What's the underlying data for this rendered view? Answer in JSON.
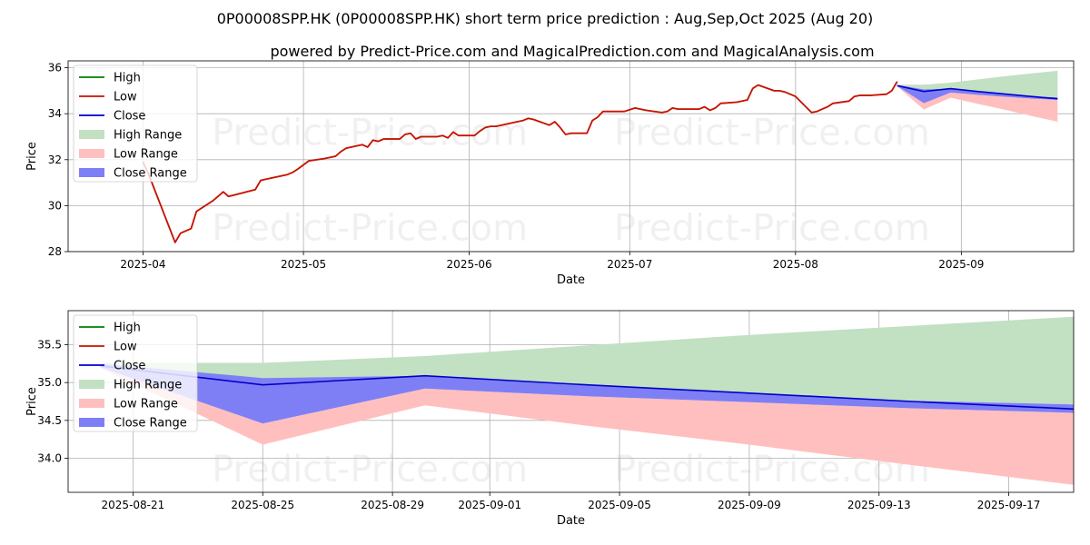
{
  "title_line1": "0P00008SPP.HK (0P00008SPP.HK) short term price prediction : Aug,Sep,Oct 2025 (Aug 20)",
  "title_line2": "powered by Predict-Price.com and MagicalPrediction.com and MagicalAnalysis.com",
  "watermark": "Predict-Price.com",
  "colors": {
    "high": "#008000",
    "low": "#cc1100",
    "close": "#0000cc",
    "high_range": "#c2e0c2",
    "low_range": "#ffbfbf",
    "close_range": "#7f7ff5"
  },
  "chart_data": [
    {
      "type": "line",
      "xlabel": "Date",
      "ylabel": "Price",
      "ylim": [
        28,
        36.3
      ],
      "xlim": [
        "2025-03-18",
        "2025-09-22"
      ],
      "yticks": [
        28,
        30,
        32,
        34,
        36
      ],
      "xticks": [
        "2025-04-01",
        "2025-05-01",
        "2025-06-01",
        "2025-07-01",
        "2025-08-01",
        "2025-09-01"
      ],
      "xtick_labels": [
        "2025-04",
        "2025-05",
        "2025-06",
        "2025-07",
        "2025-08",
        "2025-09"
      ],
      "grid": true,
      "legend": "top-left",
      "legend_entries": [
        "High",
        "Low",
        "Close",
        "High Range",
        "Low Range",
        "Close Range"
      ],
      "history": {
        "dates": [
          "2025-04-01",
          "2025-04-02",
          "2025-04-03",
          "2025-04-07",
          "2025-04-08",
          "2025-04-09",
          "2025-04-10",
          "2025-04-11",
          "2025-04-14",
          "2025-04-15",
          "2025-04-16",
          "2025-04-17",
          "2025-04-22",
          "2025-04-23",
          "2025-04-24",
          "2025-04-25",
          "2025-04-28",
          "2025-04-29",
          "2025-04-30",
          "2025-05-02",
          "2025-05-05",
          "2025-05-06",
          "2025-05-07",
          "2025-05-08",
          "2025-05-09",
          "2025-05-12",
          "2025-05-13",
          "2025-05-14",
          "2025-05-15",
          "2025-05-16",
          "2025-05-19",
          "2025-05-20",
          "2025-05-21",
          "2025-05-22",
          "2025-05-23",
          "2025-05-26",
          "2025-05-27",
          "2025-05-28",
          "2025-05-29",
          "2025-05-30",
          "2025-06-02",
          "2025-06-03",
          "2025-06-04",
          "2025-06-05",
          "2025-06-06",
          "2025-06-09",
          "2025-06-10",
          "2025-06-11",
          "2025-06-12",
          "2025-06-13",
          "2025-06-16",
          "2025-06-17",
          "2025-06-18",
          "2025-06-19",
          "2025-06-20",
          "2025-06-23",
          "2025-06-24",
          "2025-06-25",
          "2025-06-26",
          "2025-06-27",
          "2025-06-30",
          "2025-07-02",
          "2025-07-03",
          "2025-07-04",
          "2025-07-07",
          "2025-07-08",
          "2025-07-09",
          "2025-07-10",
          "2025-07-11",
          "2025-07-14",
          "2025-07-15",
          "2025-07-16",
          "2025-07-17",
          "2025-07-18",
          "2025-07-21",
          "2025-07-22",
          "2025-07-23",
          "2025-07-24",
          "2025-07-25",
          "2025-07-28",
          "2025-07-29",
          "2025-07-30",
          "2025-07-31",
          "2025-08-01",
          "2025-08-04",
          "2025-08-05",
          "2025-08-06",
          "2025-08-07",
          "2025-08-08",
          "2025-08-11",
          "2025-08-12",
          "2025-08-13",
          "2025-08-14",
          "2025-08-15",
          "2025-08-18",
          "2025-08-19",
          "2025-08-20"
        ],
        "close": [
          31.9,
          31.4,
          30.8,
          28.4,
          28.8,
          28.9,
          29.0,
          29.75,
          30.2,
          30.4,
          30.6,
          30.4,
          30.7,
          31.1,
          31.15,
          31.2,
          31.35,
          31.45,
          31.6,
          31.95,
          32.05,
          32.1,
          32.15,
          32.35,
          32.5,
          32.65,
          32.55,
          32.85,
          32.8,
          32.9,
          32.9,
          33.1,
          33.15,
          32.9,
          33.0,
          33.0,
          33.05,
          32.95,
          33.2,
          33.05,
          33.05,
          33.25,
          33.4,
          33.45,
          33.45,
          33.6,
          33.65,
          33.7,
          33.8,
          33.75,
          33.5,
          33.65,
          33.4,
          33.1,
          33.15,
          33.15,
          33.7,
          33.85,
          34.1,
          34.1,
          34.1,
          34.25,
          34.2,
          34.15,
          34.05,
          34.1,
          34.25,
          34.2,
          34.2,
          34.2,
          34.3,
          34.15,
          34.25,
          34.45,
          34.5,
          34.55,
          34.6,
          35.1,
          35.25,
          35.0,
          35.0,
          34.95,
          34.85,
          34.75,
          34.05,
          34.1,
          34.2,
          34.3,
          34.45,
          34.55,
          34.75,
          34.8,
          34.8,
          34.8,
          34.85,
          35.0,
          35.4
        ]
      },
      "forecast": {
        "dates": [
          "2025-08-20",
          "2025-08-25",
          "2025-08-30",
          "2025-09-04",
          "2025-09-09",
          "2025-09-14",
          "2025-09-19"
        ],
        "close": [
          35.22,
          34.97,
          35.09,
          34.97,
          34.86,
          34.75,
          34.65
        ],
        "close_low": [
          35.2,
          34.46,
          34.92,
          34.82,
          34.74,
          34.66,
          34.6
        ],
        "close_high": [
          35.25,
          35.06,
          35.09,
          34.97,
          34.86,
          34.76,
          34.71
        ],
        "high_low": [
          35.22,
          35.06,
          35.09,
          34.97,
          34.86,
          34.76,
          34.71
        ],
        "high_high": [
          35.26,
          35.26,
          35.35,
          35.49,
          35.63,
          35.75,
          35.87
        ],
        "low_low": [
          35.19,
          34.18,
          34.7,
          34.43,
          34.18,
          33.91,
          33.65
        ],
        "low_high": [
          35.2,
          34.46,
          34.92,
          34.82,
          34.74,
          34.66,
          34.6
        ]
      }
    },
    {
      "type": "line",
      "xlabel": "Date",
      "ylabel": "Price",
      "ylim": [
        33.55,
        35.95
      ],
      "xlim": [
        "2025-08-19",
        "2025-09-19"
      ],
      "yticks": [
        34.0,
        34.5,
        35.0,
        35.5
      ],
      "ytick_labels": [
        "34.0",
        "34.5",
        "35.0",
        "35.5"
      ],
      "xticks": [
        "2025-08-21",
        "2025-08-25",
        "2025-08-29",
        "2025-09-01",
        "2025-09-05",
        "2025-09-09",
        "2025-09-13",
        "2025-09-17"
      ],
      "xtick_labels": [
        "2025-08-21",
        "2025-08-25",
        "2025-08-29",
        "2025-09-01",
        "2025-09-05",
        "2025-09-09",
        "2025-09-13",
        "2025-09-17"
      ],
      "grid": true,
      "legend": "top-left",
      "legend_entries": [
        "High",
        "Low",
        "Close",
        "High Range",
        "Low Range",
        "Close Range"
      ]
    }
  ]
}
